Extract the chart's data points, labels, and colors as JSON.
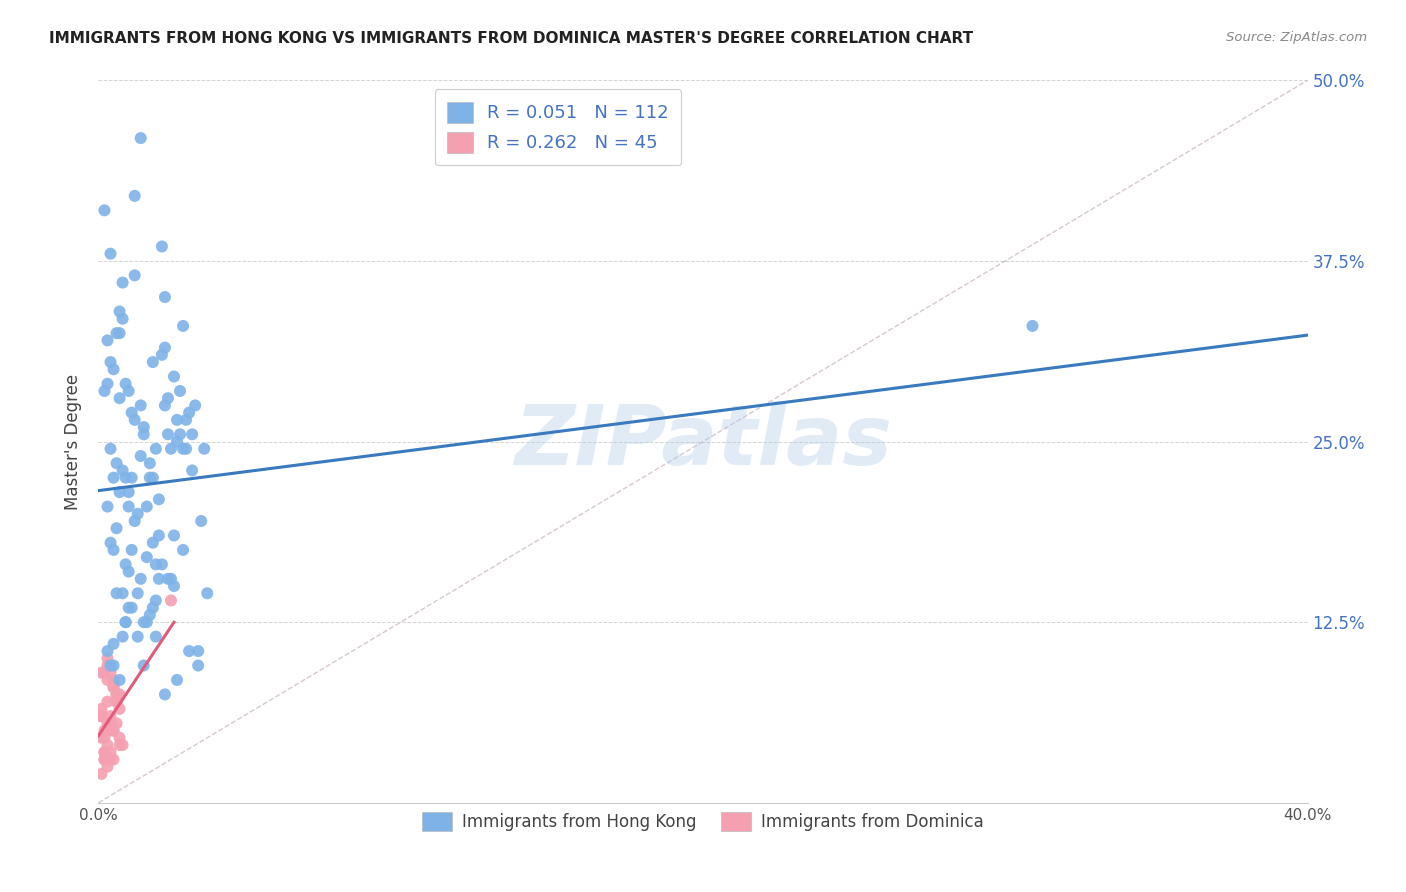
{
  "title": "IMMIGRANTS FROM HONG KONG VS IMMIGRANTS FROM DOMINICA MASTER'S DEGREE CORRELATION CHART",
  "source": "Source: ZipAtlas.com",
  "ylabel": "Master's Degree",
  "ytick_labels": [
    "",
    "12.5%",
    "25.0%",
    "37.5%",
    "50.0%"
  ],
  "ytick_values": [
    0.0,
    0.125,
    0.25,
    0.375,
    0.5
  ],
  "xtick_values": [
    0.0,
    0.1,
    0.2,
    0.3,
    0.4
  ],
  "xtick_labels": [
    "0.0%",
    "",
    "",
    "",
    "40.0%"
  ],
  "xlim": [
    0.0,
    0.4
  ],
  "ylim": [
    0.0,
    0.5
  ],
  "hk_color": "#7fb3e8",
  "dom_color": "#f4a0b0",
  "hk_line_color": "#3a7abf",
  "dom_line_color": "#e05c7a",
  "diagonal_color": "#c8b0c0",
  "hk_R": 0.051,
  "hk_N": 112,
  "dom_R": 0.262,
  "dom_N": 45,
  "legend_text_color": "#4472c4",
  "watermark": "ZIPatlas",
  "hk_scatter_x": [
    0.008,
    0.012,
    0.005,
    0.018,
    0.003,
    0.022,
    0.007,
    0.015,
    0.01,
    0.025,
    0.004,
    0.019,
    0.009,
    0.014,
    0.006,
    0.028,
    0.011,
    0.002,
    0.033,
    0.021,
    0.016,
    0.008,
    0.013,
    0.026,
    0.005,
    0.017,
    0.031,
    0.01,
    0.023,
    0.007,
    0.02,
    0.012,
    0.004,
    0.029,
    0.009,
    0.018,
    0.003,
    0.024,
    0.014,
    0.034,
    0.006,
    0.027,
    0.011,
    0.022,
    0.008,
    0.016,
    0.03,
    0.005,
    0.019,
    0.013,
    0.002,
    0.025,
    0.01,
    0.035,
    0.007,
    0.02,
    0.015,
    0.004,
    0.028,
    0.009,
    0.023,
    0.012,
    0.006,
    0.032,
    0.017,
    0.021,
    0.003,
    0.026,
    0.011,
    0.018,
    0.008,
    0.029,
    0.014,
    0.005,
    0.022,
    0.01,
    0.016,
    0.033,
    0.007,
    0.024,
    0.013,
    0.019,
    0.004,
    0.027,
    0.009,
    0.015,
    0.03,
    0.006,
    0.02,
    0.011,
    0.025,
    0.003,
    0.036,
    0.008,
    0.017,
    0.023,
    0.012,
    0.028,
    0.005,
    0.021,
    0.014,
    0.031,
    0.007,
    0.018,
    0.01,
    0.026,
    0.004,
    0.022,
    0.015,
    0.309,
    0.009,
    0.019
  ],
  "hk_scatter_y": [
    0.23,
    0.42,
    0.11,
    0.18,
    0.32,
    0.35,
    0.28,
    0.26,
    0.215,
    0.15,
    0.38,
    0.14,
    0.29,
    0.24,
    0.19,
    0.33,
    0.27,
    0.41,
    0.095,
    0.31,
    0.17,
    0.36,
    0.2,
    0.25,
    0.3,
    0.13,
    0.23,
    0.16,
    0.28,
    0.34,
    0.21,
    0.265,
    0.18,
    0.245,
    0.125,
    0.225,
    0.29,
    0.155,
    0.275,
    0.195,
    0.235,
    0.255,
    0.175,
    0.315,
    0.145,
    0.205,
    0.27,
    0.225,
    0.165,
    0.115,
    0.285,
    0.185,
    0.135,
    0.245,
    0.215,
    0.155,
    0.095,
    0.305,
    0.175,
    0.125,
    0.255,
    0.195,
    0.145,
    0.275,
    0.235,
    0.165,
    0.105,
    0.085,
    0.225,
    0.135,
    0.115,
    0.265,
    0.155,
    0.095,
    0.075,
    0.205,
    0.125,
    0.105,
    0.085,
    0.245,
    0.145,
    0.115,
    0.095,
    0.285,
    0.165,
    0.125,
    0.105,
    0.325,
    0.185,
    0.135,
    0.295,
    0.205,
    0.145,
    0.335,
    0.225,
    0.155,
    0.365,
    0.245,
    0.175,
    0.385,
    0.46,
    0.255,
    0.325,
    0.305,
    0.285,
    0.265,
    0.245,
    0.275,
    0.255,
    0.33,
    0.225,
    0.245
  ],
  "dom_scatter_x": [
    0.003,
    0.005,
    0.002,
    0.007,
    0.001,
    0.004,
    0.006,
    0.002,
    0.008,
    0.003,
    0.001,
    0.005,
    0.004,
    0.002,
    0.006,
    0.003,
    0.007,
    0.001,
    0.004,
    0.005,
    0.002,
    0.006,
    0.003,
    0.001,
    0.004,
    0.005,
    0.002,
    0.007,
    0.003,
    0.001,
    0.004,
    0.006,
    0.002,
    0.005,
    0.003,
    0.024,
    0.001,
    0.004,
    0.006,
    0.002,
    0.005,
    0.003,
    0.007,
    0.001,
    0.004
  ],
  "dom_scatter_y": [
    0.055,
    0.08,
    0.045,
    0.065,
    0.09,
    0.035,
    0.07,
    0.05,
    0.04,
    0.1,
    0.06,
    0.085,
    0.05,
    0.03,
    0.075,
    0.095,
    0.04,
    0.06,
    0.055,
    0.08,
    0.03,
    0.07,
    0.04,
    0.065,
    0.09,
    0.05,
    0.035,
    0.075,
    0.085,
    0.045,
    0.06,
    0.055,
    0.09,
    0.03,
    0.07,
    0.14,
    0.06,
    0.055,
    0.075,
    0.035,
    0.05,
    0.025,
    0.045,
    0.02,
    0.03
  ],
  "background_color": "#ffffff",
  "grid_color": "#d0d0d0"
}
